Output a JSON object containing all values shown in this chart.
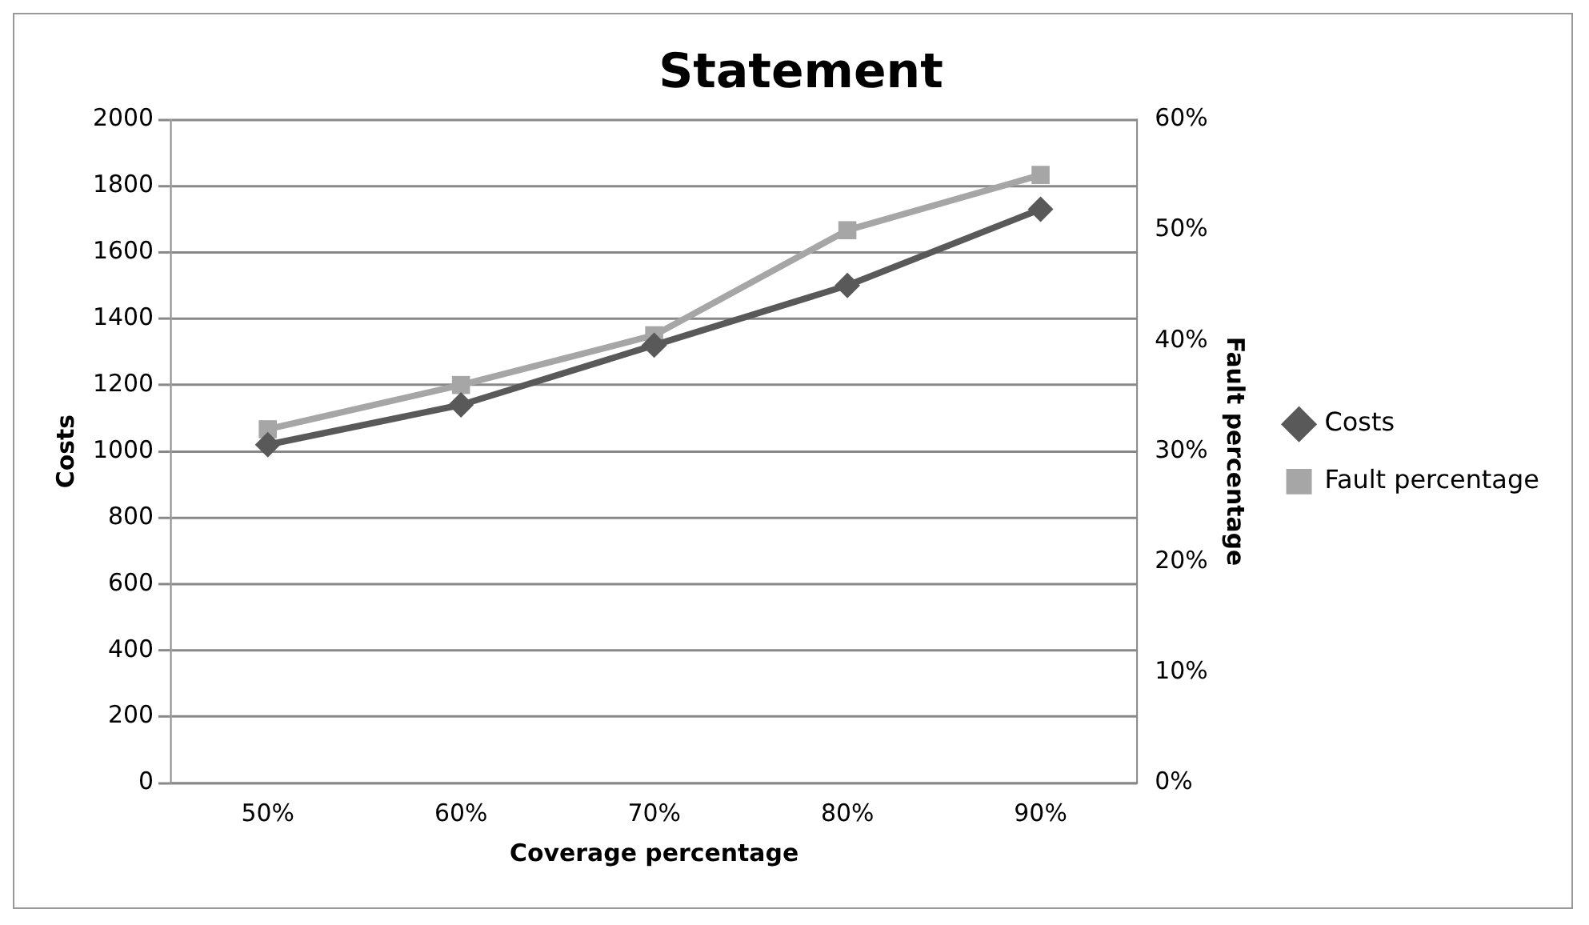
{
  "chart_data": {
    "type": "line",
    "title": "Statement",
    "xlabel": "Coverage percentage",
    "ylabel": "Costs",
    "y2label": "Fault percentage",
    "categories": [
      "50%",
      "60%",
      "70%",
      "80%",
      "90%"
    ],
    "series": [
      {
        "name": "Costs",
        "color": "#595959",
        "marker": "diamond",
        "values": [
          1020,
          1140,
          1320,
          1500,
          1730
        ]
      },
      {
        "name": "Fault percentage",
        "color": "#a6a6a6",
        "marker": "square",
        "axis": "y2",
        "values": [
          32,
          36,
          40.5,
          50,
          55
        ]
      }
    ],
    "ylim": [
      0,
      2000
    ],
    "yticks": [
      0,
      200,
      400,
      600,
      800,
      1000,
      1200,
      1400,
      1600,
      1800,
      2000
    ],
    "y2lim": [
      0,
      60
    ],
    "y2ticks": [
      {
        "value": 0,
        "label": "0%"
      },
      {
        "value": 10,
        "label": "10%"
      },
      {
        "value": 20,
        "label": "20%"
      },
      {
        "value": 30,
        "label": "30%"
      },
      {
        "value": 40,
        "label": "40%"
      },
      {
        "value": 50,
        "label": "50%"
      },
      {
        "value": 60,
        "label": "60%"
      }
    ],
    "grid": "y",
    "legend": "right"
  }
}
